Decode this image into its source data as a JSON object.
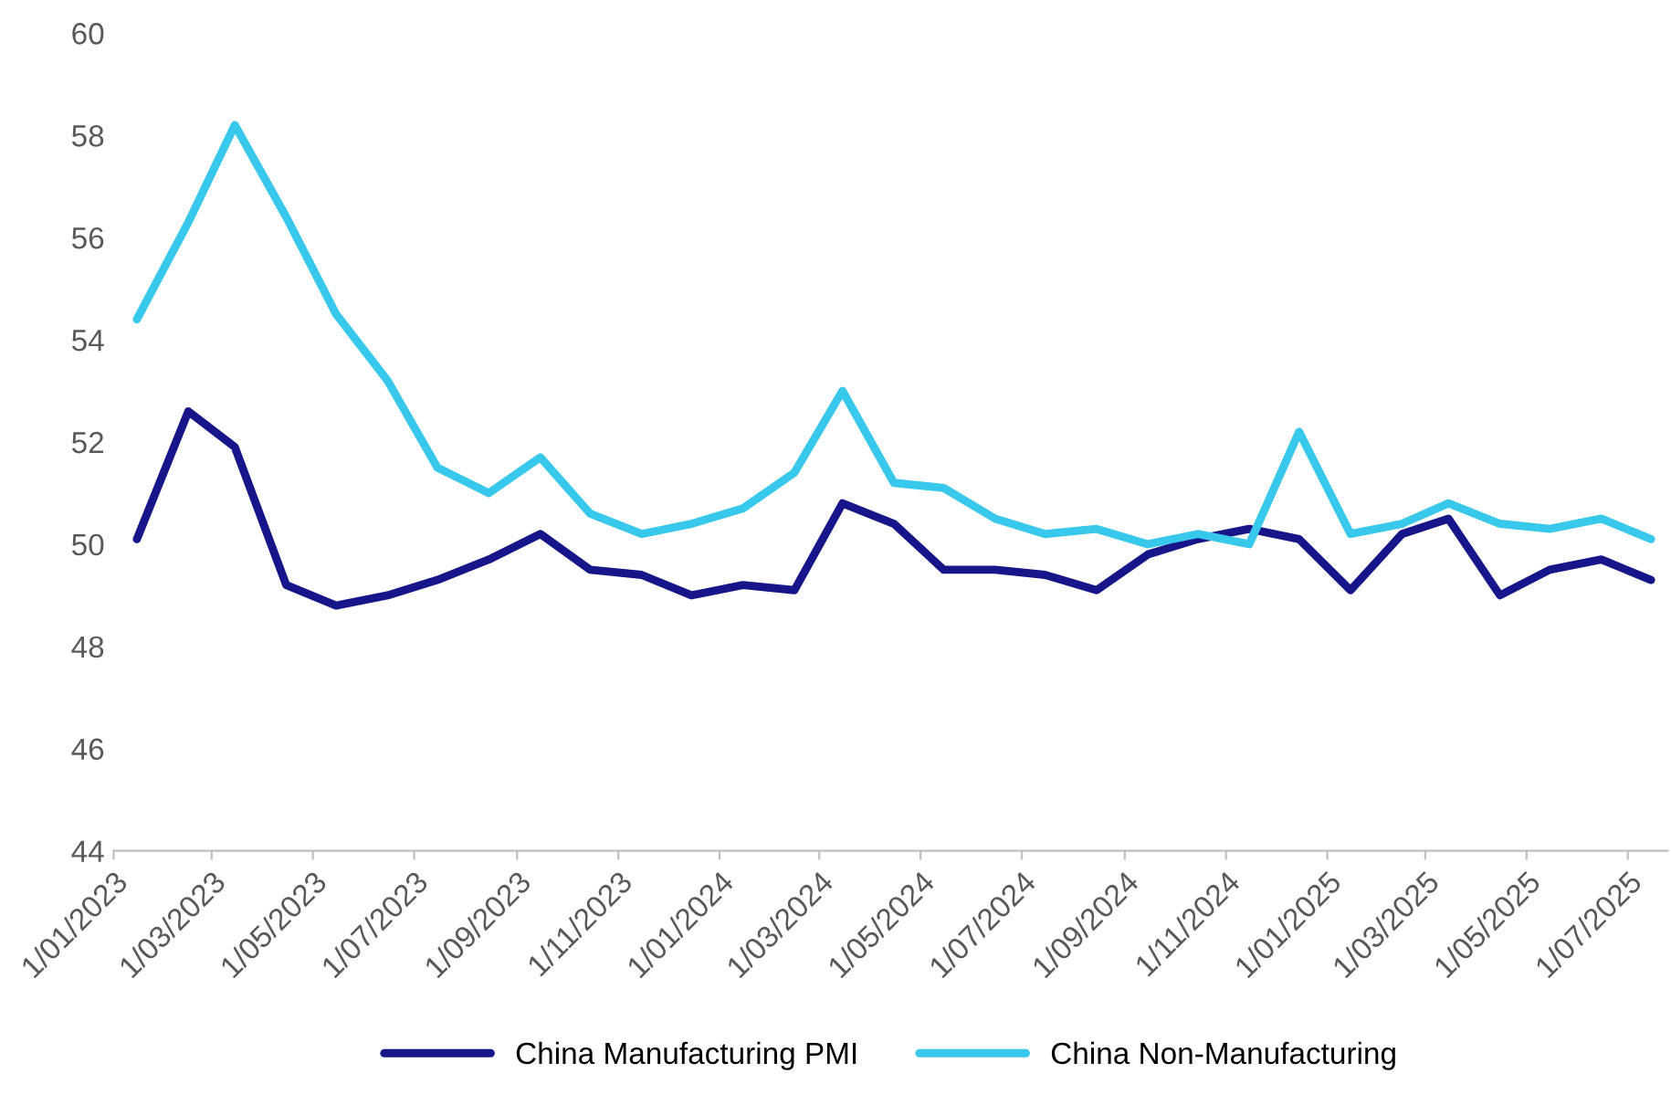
{
  "chart_data": {
    "type": "line",
    "x": [
      "2023-01-15",
      "2023-02-15",
      "2023-03-15",
      "2023-04-15",
      "2023-05-15",
      "2023-06-15",
      "2023-07-15",
      "2023-08-15",
      "2023-09-15",
      "2023-10-15",
      "2023-11-15",
      "2023-12-15",
      "2024-01-15",
      "2024-02-15",
      "2024-03-15",
      "2024-04-15",
      "2024-05-15",
      "2024-06-15",
      "2024-07-15",
      "2024-08-15",
      "2024-09-15",
      "2024-10-15",
      "2024-11-15",
      "2024-12-15",
      "2025-01-15",
      "2025-02-15",
      "2025-03-15",
      "2025-04-15",
      "2025-05-15",
      "2025-06-15",
      "2025-07-15"
    ],
    "series": [
      {
        "name": "China Manufacturing PMI",
        "color": "#16168a",
        "values": [
          50.1,
          52.6,
          51.9,
          49.2,
          48.8,
          49.0,
          49.3,
          49.7,
          50.2,
          49.5,
          49.4,
          49.0,
          49.2,
          49.1,
          50.8,
          50.4,
          49.5,
          49.5,
          49.4,
          49.1,
          49.8,
          50.1,
          50.3,
          50.1,
          49.1,
          50.2,
          50.5,
          49.0,
          49.5,
          49.7,
          49.3
        ]
      },
      {
        "name": "China Non-Manufacturing",
        "color": "#38c8ec",
        "values": [
          54.4,
          56.3,
          58.2,
          56.4,
          54.5,
          53.2,
          51.5,
          51.0,
          51.7,
          50.6,
          50.2,
          50.4,
          50.7,
          51.4,
          53.0,
          51.2,
          51.1,
          50.5,
          50.2,
          50.3,
          50.0,
          50.2,
          50.0,
          52.2,
          50.2,
          50.4,
          50.8,
          50.4,
          50.3,
          50.5,
          50.1
        ]
      }
    ],
    "ylim": [
      44,
      60
    ],
    "yticks": [
      44,
      46,
      48,
      50,
      52,
      54,
      56,
      58,
      60
    ],
    "xlim": [
      "2023-01-01",
      "2025-07-25"
    ],
    "xticks": [
      {
        "value": "2023-01-01",
        "label": "1/01/2023"
      },
      {
        "value": "2023-03-01",
        "label": "1/03/2023"
      },
      {
        "value": "2023-05-01",
        "label": "1/05/2023"
      },
      {
        "value": "2023-07-01",
        "label": "1/07/2023"
      },
      {
        "value": "2023-09-01",
        "label": "1/09/2023"
      },
      {
        "value": "2023-11-01",
        "label": "1/11/2023"
      },
      {
        "value": "2024-01-01",
        "label": "1/01/2024"
      },
      {
        "value": "2024-03-01",
        "label": "1/03/2024"
      },
      {
        "value": "2024-05-01",
        "label": "1/05/2024"
      },
      {
        "value": "2024-07-01",
        "label": "1/07/2024"
      },
      {
        "value": "2024-09-01",
        "label": "1/09/2024"
      },
      {
        "value": "2024-11-01",
        "label": "1/11/2024"
      },
      {
        "value": "2025-01-01",
        "label": "1/01/2025"
      },
      {
        "value": "2025-03-01",
        "label": "1/03/2025"
      },
      {
        "value": "2025-05-01",
        "label": "1/05/2025"
      },
      {
        "value": "2025-07-01",
        "label": "1/07/2025"
      }
    ],
    "legend": "bottom",
    "grid": false,
    "marker": "none",
    "line_style": "solid"
  }
}
